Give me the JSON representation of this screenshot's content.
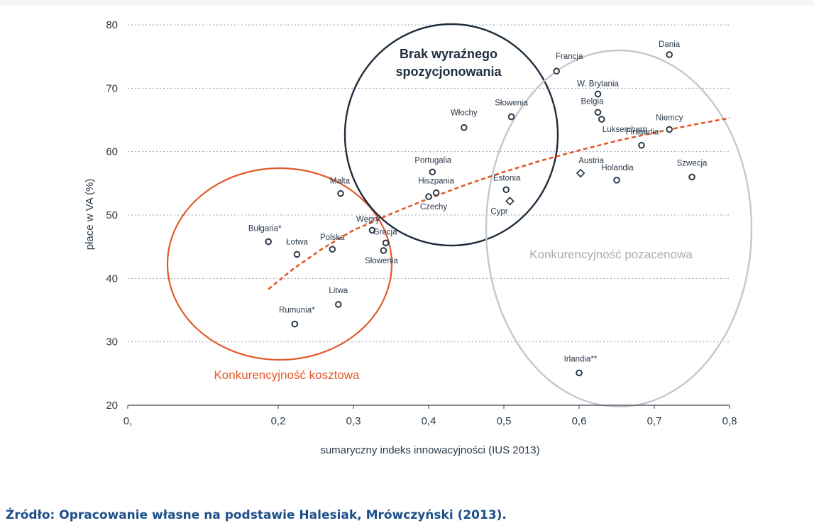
{
  "chart_data": {
    "type": "scatter",
    "xlabel": "sumaryczny indeks innowacyjności (IUS 2013)",
    "ylabel": "płace w VA (%)",
    "xlim": [
      0,
      0.8
    ],
    "ylim": [
      20,
      80
    ],
    "x_ticks": [
      "0,",
      "0,2",
      "0,3",
      "0,4",
      "0,5",
      "0,6",
      "0,7",
      "0,8"
    ],
    "y_ticks": [
      "20",
      "30",
      "40",
      "50",
      "60",
      "70",
      "80"
    ],
    "grid": "horizontal dotted",
    "points": [
      {
        "label": "Dania",
        "x": 0.72,
        "y": 75.3,
        "marker": "circle"
      },
      {
        "label": "Francja",
        "x": 0.57,
        "y": 72.7,
        "marker": "circle"
      },
      {
        "label": "W. Brytania",
        "x": 0.625,
        "y": 69.1,
        "marker": "circle"
      },
      {
        "label": "Belgia",
        "x": 0.625,
        "y": 66.2,
        "marker": "circle"
      },
      {
        "label": "Luksemburg",
        "x": 0.63,
        "y": 65.1,
        "marker": "circle"
      },
      {
        "label": "Słowenia",
        "x": 0.51,
        "y": 65.5,
        "marker": "circle"
      },
      {
        "label": "Włochy",
        "x": 0.447,
        "y": 63.8,
        "marker": "circle"
      },
      {
        "label": "Niemcy",
        "x": 0.72,
        "y": 63.5,
        "marker": "circle"
      },
      {
        "label": "Finlandia",
        "x": 0.683,
        "y": 61.0,
        "marker": "circle"
      },
      {
        "label": "Portugalia",
        "x": 0.405,
        "y": 56.8,
        "marker": "circle"
      },
      {
        "label": "Austria",
        "x": 0.602,
        "y": 56.6,
        "marker": "diamond"
      },
      {
        "label": "Szwecja",
        "x": 0.75,
        "y": 56.0,
        "marker": "circle"
      },
      {
        "label": "Holandia",
        "x": 0.65,
        "y": 55.5,
        "marker": "circle"
      },
      {
        "label": "Estonia",
        "x": 0.503,
        "y": 54.0,
        "marker": "circle"
      },
      {
        "label": "Hiszpania",
        "x": 0.41,
        "y": 53.5,
        "marker": "circle"
      },
      {
        "label": "Czechy",
        "x": 0.4,
        "y": 52.9,
        "marker": "circle"
      },
      {
        "label": "Cypr",
        "x": 0.508,
        "y": 52.2,
        "marker": "diamond"
      },
      {
        "label": "Malta",
        "x": 0.283,
        "y": 53.4,
        "marker": "circle"
      },
      {
        "label": "Węgry",
        "x": 0.325,
        "y": 47.6,
        "marker": "circle"
      },
      {
        "label": "Grecja",
        "x": 0.343,
        "y": 45.6,
        "marker": "circle"
      },
      {
        "label": "Słowenia",
        "x": 0.34,
        "y": 44.4,
        "marker": "circle"
      },
      {
        "label": "Bułgaria*",
        "x": 0.187,
        "y": 45.8,
        "marker": "circle"
      },
      {
        "label": "Polska",
        "x": 0.272,
        "y": 44.6,
        "marker": "circle"
      },
      {
        "label": "Łotwa",
        "x": 0.225,
        "y": 43.8,
        "marker": "circle"
      },
      {
        "label": "Litwa",
        "x": 0.28,
        "y": 35.9,
        "marker": "circle"
      },
      {
        "label": "Rumunia*",
        "x": 0.222,
        "y": 32.8,
        "marker": "circle"
      },
      {
        "label": "Irlandia**",
        "x": 0.6,
        "y": 25.1,
        "marker": "circle"
      }
    ],
    "trend": {
      "style": "dashed",
      "color": "#e2592a",
      "x": [
        0.187,
        0.22,
        0.26,
        0.3,
        0.35,
        0.4,
        0.45,
        0.5,
        0.55,
        0.6,
        0.65,
        0.7,
        0.75,
        0.8
      ],
      "y": [
        38.3,
        41.5,
        44.8,
        47.6,
        50.2,
        52.6,
        54.8,
        56.8,
        58.6,
        60.2,
        61.7,
        63.0,
        64.2,
        65.3
      ]
    },
    "groups": [
      {
        "label": "Konkurencyjność kosztowa",
        "color": "#e2592a"
      },
      {
        "label": "Brak wyraźnego spozycjonowania",
        "color": "#1f2d3d"
      },
      {
        "label": "Konkurencyjność pozacenowa",
        "color": "#b9bcc2"
      }
    ]
  },
  "source": "Źródło: Opracowanie własne na podstawie Halesiak, Mrówczyński (2013)."
}
